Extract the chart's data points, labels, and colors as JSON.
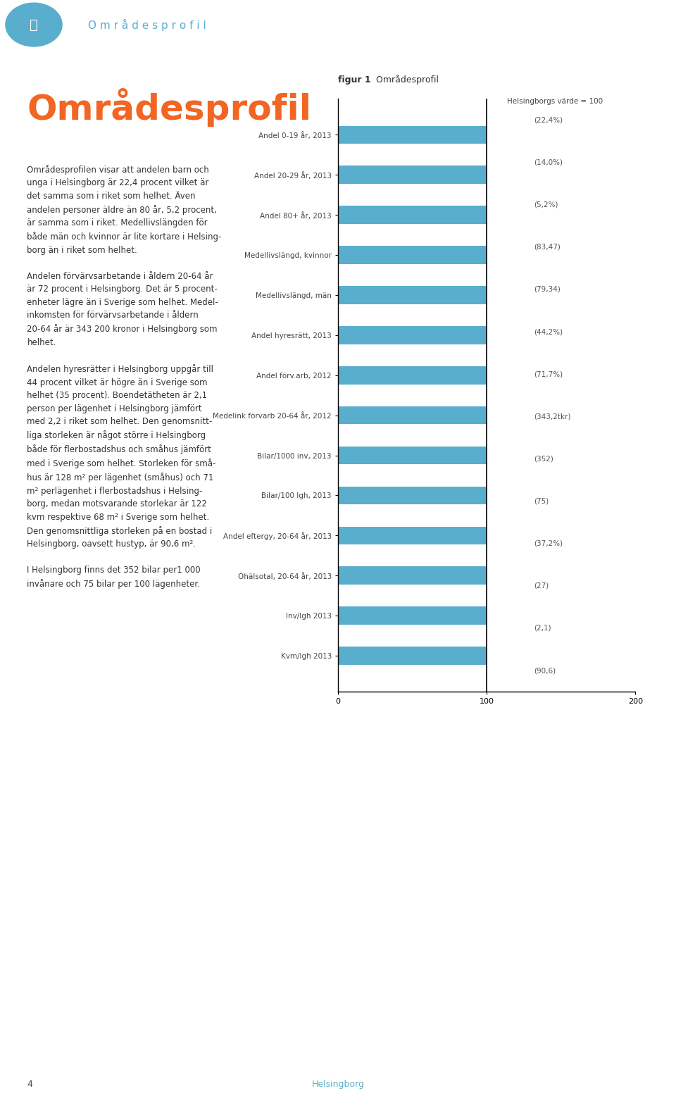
{
  "fig_title": "figur 1 Område sprofil",
  "fig_title_bold": "figur 1",
  "fig_title_normal": " Områdesprofil",
  "header_title": "Områdesprofil",
  "header_subtitle": "Områdesprofil",
  "helsingborg_label": "Helsingborgs värde = 100",
  "categories": [
    "Andel 0-19 år, 2013",
    "Andel 20-29 år, 2013",
    "Andel 80+ år, 2013",
    "Medellivslängd, kvinnor",
    "Medellivslängd, män",
    "Andel hyresrätt, 2013",
    "Andel förv.arb, 2012",
    "Medelink förvarb 20-64 år, 2012",
    "Bilar/1000 inv, 2013",
    "Bilar/100 lgh, 2013",
    "Andel eftergy, 20-64 år, 2013",
    "Ohälsotal, 20-64 år, 2013",
    "Inv/lgh 2013",
    "Kvm/lgh 2013"
  ],
  "values": [
    100,
    100,
    100,
    100,
    100,
    100,
    100,
    100,
    100,
    100,
    100,
    100,
    100,
    100
  ],
  "annotations": [
    "(22,4%)",
    "(14,0%)",
    "(5,2%)",
    "(83,47)",
    "(79,34)",
    "(44,2%)",
    "(71,7%)",
    "(343,2tkr)",
    "(352)",
    "(75)",
    "(37,2%)",
    "(27)",
    "(2,1)",
    "(90,6)"
  ],
  "bar_color": "#5aaecd",
  "xlim": [
    0,
    200
  ],
  "xticks": [
    0,
    100,
    200
  ],
  "vline_x": 100,
  "vline_color": "#000000",
  "background_color": "#ffffff",
  "left_text_color": "#444444",
  "right_text_color": "#555555",
  "fig_label_color": "#333333",
  "title_color": "#f26522",
  "header_color": "#5aaecd",
  "body_text": "Områdesprofilen visar att andelen barn och\nunga i Helsingborg är 22,4 procent vilket är\ndet samma som i riket som helhet. Även\nandelen personer äldre än 80 år, 5,2 procent,\när samma som i riket. Medellivslängden för\nbåde män och kvinnor är lite kortare i Helsing-\nborg än i riket som helhet.\n\nAndelen förvärvsarbetande i åldern 20-64 år\när 72 procent i Helsingborg. Det är 5 procent-\nenheter lägre än i Sverige som helhet. Medel-\ninkomsten för förvärvsarbetande i åldern\n20-64 år är 343 200 kronor i Helsingborg som\nhelhet.\n\nAndelen hyresrätter i Helsingborg uppgår till\n44 procent vilket är högre än i Sverige som\nhelhet (35 procent). Boendetätheten är 2,1\nperson per lägenhet i Helsingborg jämfört\nmed 2,2 i riket som helhet. Den genomsnitt-\nliga storleken är något större i Helsingborg\nbåde för flerbostadshus och småhus jämfört\nmed i Sverige som helhet. Storleken för små-\nhus är 128 m² per lägenhet (småhus) och 71\nm² perlägenhet i flerbostadshus i Helsing-\nborg, medan motsvarande storlekar är 122\nkvm respektive 68 m² i Sverige som helhet.\nDen genomsnittliga storleken på en bostad i\nHelsingborg, oavsett hustyp, är 90,6 m².\n\nI Helsingborg finns det 352 bilar per1 000\ninvånare och 75 bilar per 100 lägenheter.",
  "page_number": "4",
  "page_city": "Helsingborg"
}
